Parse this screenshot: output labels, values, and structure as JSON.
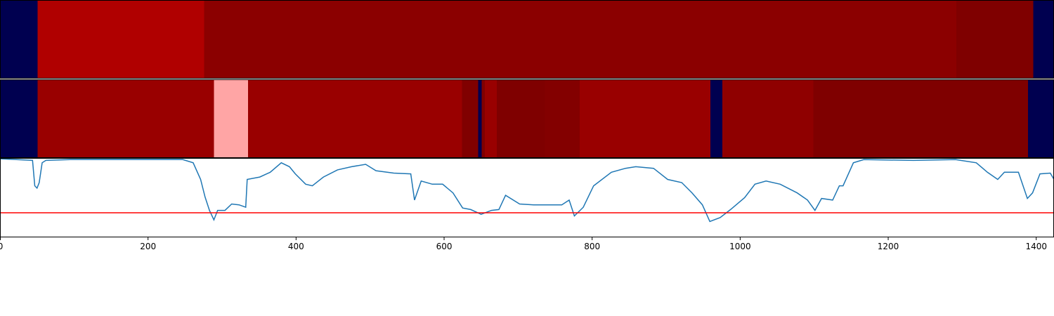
{
  "chart_data": [
    {
      "type": "heatmap",
      "xlim": [
        0,
        1424
      ],
      "bins": [
        0,
        51,
        276,
        1292,
        1396,
        1424
      ],
      "colors": [
        "#000050",
        "#b00000",
        "#8b0000",
        "#7f0000",
        "#000050"
      ]
    },
    {
      "type": "heatmap",
      "xlim": [
        0,
        1424
      ],
      "bins": [
        0,
        51,
        289,
        335,
        624,
        646,
        651,
        655,
        671,
        736,
        783,
        960,
        976,
        1099,
        1389,
        1424
      ],
      "colors": [
        "#000050",
        "#990000",
        "#ffa5a5",
        "#990000",
        "#800000",
        "#000050",
        "#800000",
        "#990000",
        "#7f0000",
        "#830000",
        "#990000",
        "#000050",
        "#8f0000",
        "#7f0000",
        "#000050"
      ]
    },
    {
      "type": "line",
      "xlim": [
        0,
        1424
      ],
      "xticks": [
        0,
        200,
        400,
        600,
        800,
        1000,
        1200,
        1400
      ],
      "ylim": [
        0,
        1
      ],
      "color": "#1f77b4",
      "hline": {
        "value": 0.31,
        "color": "#ff0000"
      },
      "x": [
        0,
        44,
        47,
        50,
        53,
        57,
        62,
        95,
        142,
        190,
        247,
        261,
        271,
        277,
        283,
        289,
        294,
        304,
        313,
        323,
        332,
        334,
        351,
        365,
        380,
        391,
        399,
        413,
        422,
        437,
        456,
        475,
        494,
        508,
        532,
        555,
        560,
        569,
        584,
        598,
        612,
        625,
        636,
        650,
        664,
        674,
        683,
        702,
        721,
        740,
        759,
        769,
        776,
        788,
        802,
        826,
        845,
        859,
        883,
        902,
        921,
        935,
        949,
        959,
        973,
        987,
        1006,
        1020,
        1035,
        1054,
        1077,
        1091,
        1101,
        1110,
        1125,
        1134,
        1139,
        1153,
        1167,
        1234,
        1291,
        1319,
        1334,
        1348,
        1357,
        1376,
        1388,
        1395,
        1405,
        1419,
        1424
      ],
      "values": [
        0.99,
        0.97,
        0.65,
        0.62,
        0.69,
        0.94,
        0.97,
        0.98,
        0.98,
        0.98,
        0.98,
        0.94,
        0.73,
        0.51,
        0.34,
        0.22,
        0.34,
        0.34,
        0.42,
        0.41,
        0.38,
        0.73,
        0.76,
        0.82,
        0.94,
        0.89,
        0.8,
        0.67,
        0.65,
        0.76,
        0.85,
        0.89,
        0.92,
        0.84,
        0.81,
        0.8,
        0.47,
        0.71,
        0.67,
        0.67,
        0.56,
        0.37,
        0.35,
        0.29,
        0.34,
        0.35,
        0.53,
        0.42,
        0.41,
        0.41,
        0.41,
        0.47,
        0.27,
        0.38,
        0.65,
        0.82,
        0.87,
        0.89,
        0.87,
        0.73,
        0.69,
        0.56,
        0.41,
        0.2,
        0.25,
        0.35,
        0.5,
        0.67,
        0.71,
        0.67,
        0.56,
        0.47,
        0.34,
        0.49,
        0.47,
        0.65,
        0.65,
        0.94,
        0.98,
        0.97,
        0.98,
        0.94,
        0.82,
        0.73,
        0.82,
        0.82,
        0.49,
        0.56,
        0.8,
        0.81,
        0.73
      ]
    }
  ]
}
